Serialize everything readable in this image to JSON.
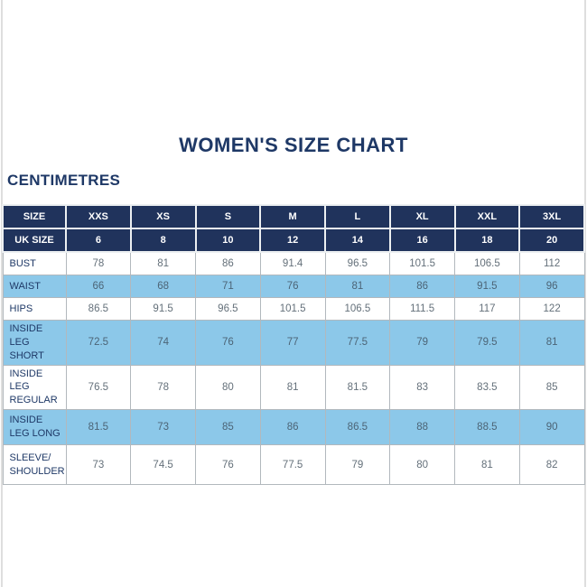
{
  "page": {
    "title": "WOMEN'S SIZE CHART",
    "units_label": "CENTIMETRES"
  },
  "colors": {
    "navy": "#20335c",
    "navy_text": "#1e3866",
    "light_blue": "#8cc8e9",
    "value_text": "#64707a",
    "grid": "#b2b8bd",
    "edge_line": "#dedede"
  },
  "chart_data": {
    "type": "table",
    "title": "WOMEN'S SIZE CHART",
    "units": "CENTIMETRES",
    "columns": [
      "SIZE",
      "XXS",
      "XS",
      "S",
      "M",
      "L",
      "XL",
      "XXL",
      "3XL"
    ],
    "rows": [
      {
        "label": "UK SIZE",
        "style": "header",
        "values": [
          "6",
          "8",
          "10",
          "12",
          "14",
          "16",
          "18",
          "20"
        ]
      },
      {
        "label": "BUST",
        "values": [
          "78",
          "81",
          "86",
          "91.4",
          "96.5",
          "101.5",
          "106.5",
          "112"
        ]
      },
      {
        "label": "WAIST",
        "values": [
          "66",
          "68",
          "71",
          "76",
          "81",
          "86",
          "91.5",
          "96"
        ]
      },
      {
        "label": "HIPS",
        "values": [
          "86.5",
          "91.5",
          "96.5",
          "101.5",
          "106.5",
          "111.5",
          "117",
          "122"
        ]
      },
      {
        "label": "INSIDE LEG SHORT",
        "values": [
          "72.5",
          "74",
          "76",
          "77",
          "77.5",
          "79",
          "79.5",
          "81"
        ]
      },
      {
        "label": "INSIDE LEG REGULAR",
        "values": [
          "76.5",
          "78",
          "80",
          "81",
          "81.5",
          "83",
          "83.5",
          "85"
        ]
      },
      {
        "label": "INSIDE LEG LONG",
        "values": [
          "81.5",
          "73",
          "85",
          "86",
          "86.5",
          "88",
          "88.5",
          "90"
        ]
      },
      {
        "label": "SLEEVE/ SHOULDER",
        "values": [
          "73",
          "74.5",
          "76",
          "77.5",
          "79",
          "80",
          "81",
          "82"
        ]
      }
    ]
  }
}
